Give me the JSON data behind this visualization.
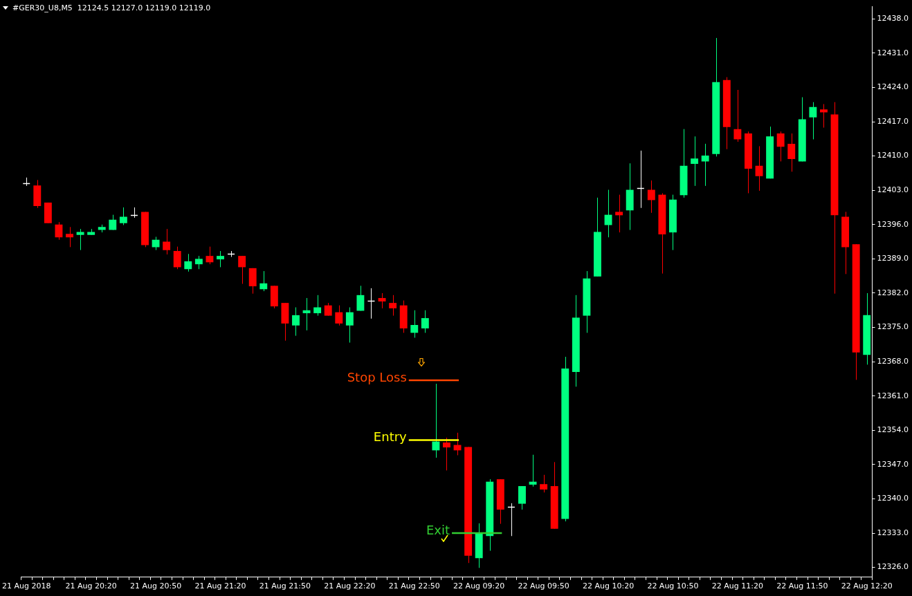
{
  "chart_data": {
    "type": "candlestick",
    "title": "#GER30_U8,M5  12124.5 12127.0 12119.0 12119.0",
    "categories": [
      "21 Aug 2018",
      null,
      null,
      null,
      null,
      null,
      "21 Aug 20:20",
      null,
      null,
      null,
      null,
      null,
      "21 Aug 20:50",
      null,
      null,
      null,
      null,
      null,
      "21 Aug 21:20",
      null,
      null,
      null,
      null,
      null,
      "21 Aug 21:50",
      null,
      null,
      null,
      null,
      null,
      "21 Aug 22:20",
      null,
      null,
      null,
      null,
      null,
      "21 Aug 22:50",
      null,
      null,
      null,
      null,
      null,
      "22 Aug 09:20",
      null,
      null,
      null,
      null,
      null,
      "22 Aug 09:50",
      null,
      null,
      null,
      null,
      null,
      "22 Aug 10:20",
      null,
      null,
      null,
      null,
      null,
      "22 Aug 10:50",
      null,
      null,
      null,
      null,
      null,
      "22 Aug 11:20",
      null,
      null,
      null,
      null,
      null,
      "22 Aug 11:50",
      null,
      null,
      null,
      null,
      null,
      "22 Aug 12:20"
    ],
    "ohlc": [
      [
        12404.5,
        12405.6,
        12403.9,
        12404.5
      ],
      [
        12404.0,
        12405.1,
        12399.4,
        12399.8
      ],
      [
        12400.5,
        12400.5,
        12396.3,
        12396.3
      ],
      [
        12396.0,
        12396.5,
        12392.9,
        12393.4
      ],
      [
        12394.1,
        12395.5,
        12391.4,
        12393.4
      ],
      [
        12393.9,
        12395.1,
        12390.8,
        12394.5
      ],
      [
        12393.9,
        12395.1,
        12393.9,
        12394.5
      ],
      [
        12394.9,
        12396.0,
        12394.4,
        12395.5
      ],
      [
        12394.9,
        12398.0,
        12394.9,
        12397.0
      ],
      [
        12396.3,
        12399.5,
        12395.9,
        12397.6
      ],
      [
        12398.0,
        12399.5,
        12397.4,
        12398.0
      ],
      [
        12398.6,
        12398.6,
        12391.4,
        12391.8
      ],
      [
        12391.4,
        12393.5,
        12390.8,
        12392.9
      ],
      [
        12392.5,
        12395.1,
        12389.9,
        12390.8
      ],
      [
        12390.6,
        12391.5,
        12386.9,
        12387.3
      ],
      [
        12386.9,
        12390.0,
        12386.4,
        12388.5
      ],
      [
        12387.9,
        12389.6,
        12386.9,
        12389.0
      ],
      [
        12389.6,
        12391.5,
        12387.9,
        12388.3
      ],
      [
        12388.9,
        12390.6,
        12387.3,
        12389.6
      ],
      [
        12390.0,
        12390.6,
        12389.4,
        12390.0
      ],
      [
        12389.6,
        12389.6,
        12383.9,
        12387.3
      ],
      [
        12387.1,
        12387.1,
        12381.9,
        12383.4
      ],
      [
        12382.8,
        12386.5,
        12382.4,
        12384.0
      ],
      [
        12383.5,
        12383.5,
        12378.9,
        12379.3
      ],
      [
        12380.0,
        12380.0,
        12372.3,
        12375.8
      ],
      [
        12375.4,
        12379.1,
        12373.3,
        12377.5
      ],
      [
        12377.9,
        12381.0,
        12374.4,
        12378.5
      ],
      [
        12377.9,
        12381.6,
        12377.4,
        12379.1
      ],
      [
        12379.5,
        12380.0,
        12377.4,
        12377.4
      ],
      [
        12378.1,
        12379.5,
        12375.4,
        12375.8
      ],
      [
        12375.4,
        12379.1,
        12371.9,
        12378.1
      ],
      [
        12378.4,
        12383.5,
        12378.4,
        12381.6
      ],
      [
        12380.5,
        12383.0,
        12376.8,
        12380.5
      ],
      [
        12381.0,
        12382.0,
        12378.9,
        12380.3
      ],
      [
        12380.0,
        12381.6,
        12377.4,
        12378.9
      ],
      [
        12379.5,
        12380.5,
        12373.9,
        12374.8
      ],
      [
        12373.9,
        12378.5,
        12372.9,
        12375.5
      ],
      [
        12374.8,
        12378.5,
        12373.9,
        12376.9
      ],
      [
        12349.9,
        12363.5,
        12348.4,
        12351.7
      ],
      [
        12351.5,
        12352.5,
        12345.8,
        12350.5
      ],
      [
        12351.0,
        12353.5,
        12348.9,
        12349.9
      ],
      [
        12350.6,
        12350.6,
        12326.9,
        12328.4
      ],
      [
        12327.9,
        12335.0,
        12325.9,
        12332.9
      ],
      [
        12332.4,
        12344.0,
        12329.4,
        12343.5
      ],
      [
        12344.0,
        12344.0,
        12334.9,
        12337.8
      ],
      [
        12338.4,
        12339.1,
        12332.4,
        12338.4
      ],
      [
        12339.0,
        12342.6,
        12337.8,
        12342.6
      ],
      [
        12342.9,
        12349.0,
        12342.5,
        12343.5
      ],
      [
        12343.0,
        12344.9,
        12341.3,
        12341.9
      ],
      [
        12342.6,
        12347.5,
        12333.9,
        12333.9
      ],
      [
        12335.9,
        12369.0,
        12335.4,
        12366.6
      ],
      [
        12365.9,
        12381.6,
        12362.9,
        12377.0
      ],
      [
        12377.4,
        12386.5,
        12373.9,
        12385.0
      ],
      [
        12385.4,
        12401.5,
        12385.4,
        12394.5
      ],
      [
        12395.9,
        12403.1,
        12393.4,
        12398.0
      ],
      [
        12398.6,
        12402.1,
        12394.4,
        12397.9
      ],
      [
        12398.9,
        12408.5,
        12394.9,
        12403.1
      ],
      [
        12403.4,
        12411.1,
        12399.4,
        12403.4
      ],
      [
        12403.1,
        12405.0,
        12398.4,
        12401.0
      ],
      [
        12402.1,
        12402.4,
        12386.0,
        12394.0
      ],
      [
        12394.4,
        12402.1,
        12390.8,
        12401.1
      ],
      [
        12402.0,
        12415.5,
        12401.5,
        12408.0
      ],
      [
        12408.4,
        12414.0,
        12403.9,
        12409.5
      ],
      [
        12408.9,
        12412.5,
        12403.9,
        12410.1
      ],
      [
        12410.4,
        12434.1,
        12409.9,
        12425.1
      ],
      [
        12425.5,
        12426.1,
        12411.4,
        12415.9
      ],
      [
        12415.5,
        12423.5,
        12412.9,
        12413.4
      ],
      [
        12414.6,
        12415.0,
        12402.4,
        12407.4
      ],
      [
        12408.0,
        12412.0,
        12402.9,
        12405.9
      ],
      [
        12405.4,
        12416.0,
        12405.4,
        12414.0
      ],
      [
        12414.6,
        12415.0,
        12408.9,
        12411.9
      ],
      [
        12412.5,
        12414.6,
        12406.8,
        12409.4
      ],
      [
        12408.9,
        12422.0,
        12408.9,
        12417.5
      ],
      [
        12417.9,
        12421.0,
        12413.4,
        12420.0
      ],
      [
        12419.5,
        12420.6,
        12415.8,
        12418.9
      ],
      [
        12418.5,
        12421.0,
        12381.9,
        12397.9
      ],
      [
        12397.6,
        12398.6,
        12385.9,
        12391.4
      ],
      [
        12392.0,
        12392.0,
        12364.3,
        12369.9
      ],
      [
        12369.4,
        12382.0,
        12367.4,
        12377.5
      ]
    ],
    "colors": [
      "#ffffff",
      "#ff0000",
      "#ff0000",
      "#ff0000",
      "#ff0000",
      "#00ff80",
      "#00ff80",
      "#00ff80",
      "#00ff80",
      "#00ff80",
      "#ffffff",
      "#ff0000",
      "#00ff80",
      "#ff0000",
      "#ff0000",
      "#00ff80",
      "#00ff80",
      "#ff0000",
      "#00ff80",
      "#ffffff",
      "#ff0000",
      "#ff0000",
      "#00ff80",
      "#ff0000",
      "#ff0000",
      "#00ff80",
      "#00ff80",
      "#00ff80",
      "#ff0000",
      "#ff0000",
      "#00ff80",
      "#00ff80",
      "#ffffff",
      "#ff0000",
      "#ff0000",
      "#ff0000",
      "#00ff80",
      "#00ff80",
      "#00ff80",
      "#ff0000",
      "#ff0000",
      "#ff0000",
      "#00ff80",
      "#00ff80",
      "#ff0000",
      "#ffffff",
      "#00ff80",
      "#00ff80",
      "#ff0000",
      "#ff0000",
      "#00ff80",
      "#00ff80",
      "#00ff80",
      "#00ff80",
      "#00ff80",
      "#ff0000",
      "#00ff80",
      "#ffffff",
      "#ff0000",
      "#ff0000",
      "#00ff80",
      "#00ff80",
      "#00ff80",
      "#00ff80",
      "#00ff80",
      "#ff0000",
      "#ff0000",
      "#ff0000",
      "#ff0000",
      "#00ff80",
      "#ff0000",
      "#ff0000",
      "#00ff80",
      "#00ff80",
      "#ff0000",
      "#ff0000",
      "#ff0000",
      "#ff0000",
      "#00ff80"
    ],
    "ylim": [
      12324,
      12440.5
    ],
    "yticks": [
      {
        "value": 12326,
        "label": "12326.0"
      },
      {
        "value": 12333,
        "label": "12333.0"
      },
      {
        "value": 12340,
        "label": "12340.0"
      },
      {
        "value": 12347,
        "label": "12347.0"
      },
      {
        "value": 12354,
        "label": "12354.0"
      },
      {
        "value": 12361,
        "label": "12361.0"
      },
      {
        "value": 12368,
        "label": "12368.0"
      },
      {
        "value": 12375,
        "label": "12375.0"
      },
      {
        "value": 12382,
        "label": "12382.0"
      },
      {
        "value": 12389,
        "label": "12389.0"
      },
      {
        "value": 12396,
        "label": "12396.0"
      },
      {
        "value": 12403,
        "label": "12403.0"
      },
      {
        "value": 12410,
        "label": "12410.0"
      },
      {
        "value": 12417,
        "label": "12417.0"
      },
      {
        "value": 12424,
        "label": "12424.0"
      },
      {
        "value": 12431,
        "label": "12431.0"
      },
      {
        "value": 12438,
        "label": "12438.0"
      }
    ],
    "ref_lines": [
      {
        "axis": "y",
        "value": 12364.2,
        "label": "Stop Loss",
        "color": "#ff4500"
      },
      {
        "axis": "y",
        "value": 12352.0,
        "label": "Entry",
        "color": "#ffff00"
      },
      {
        "axis": "y",
        "value": 12333.0,
        "label": "Exit",
        "color": "#32cd32"
      }
    ],
    "legend": false
  }
}
